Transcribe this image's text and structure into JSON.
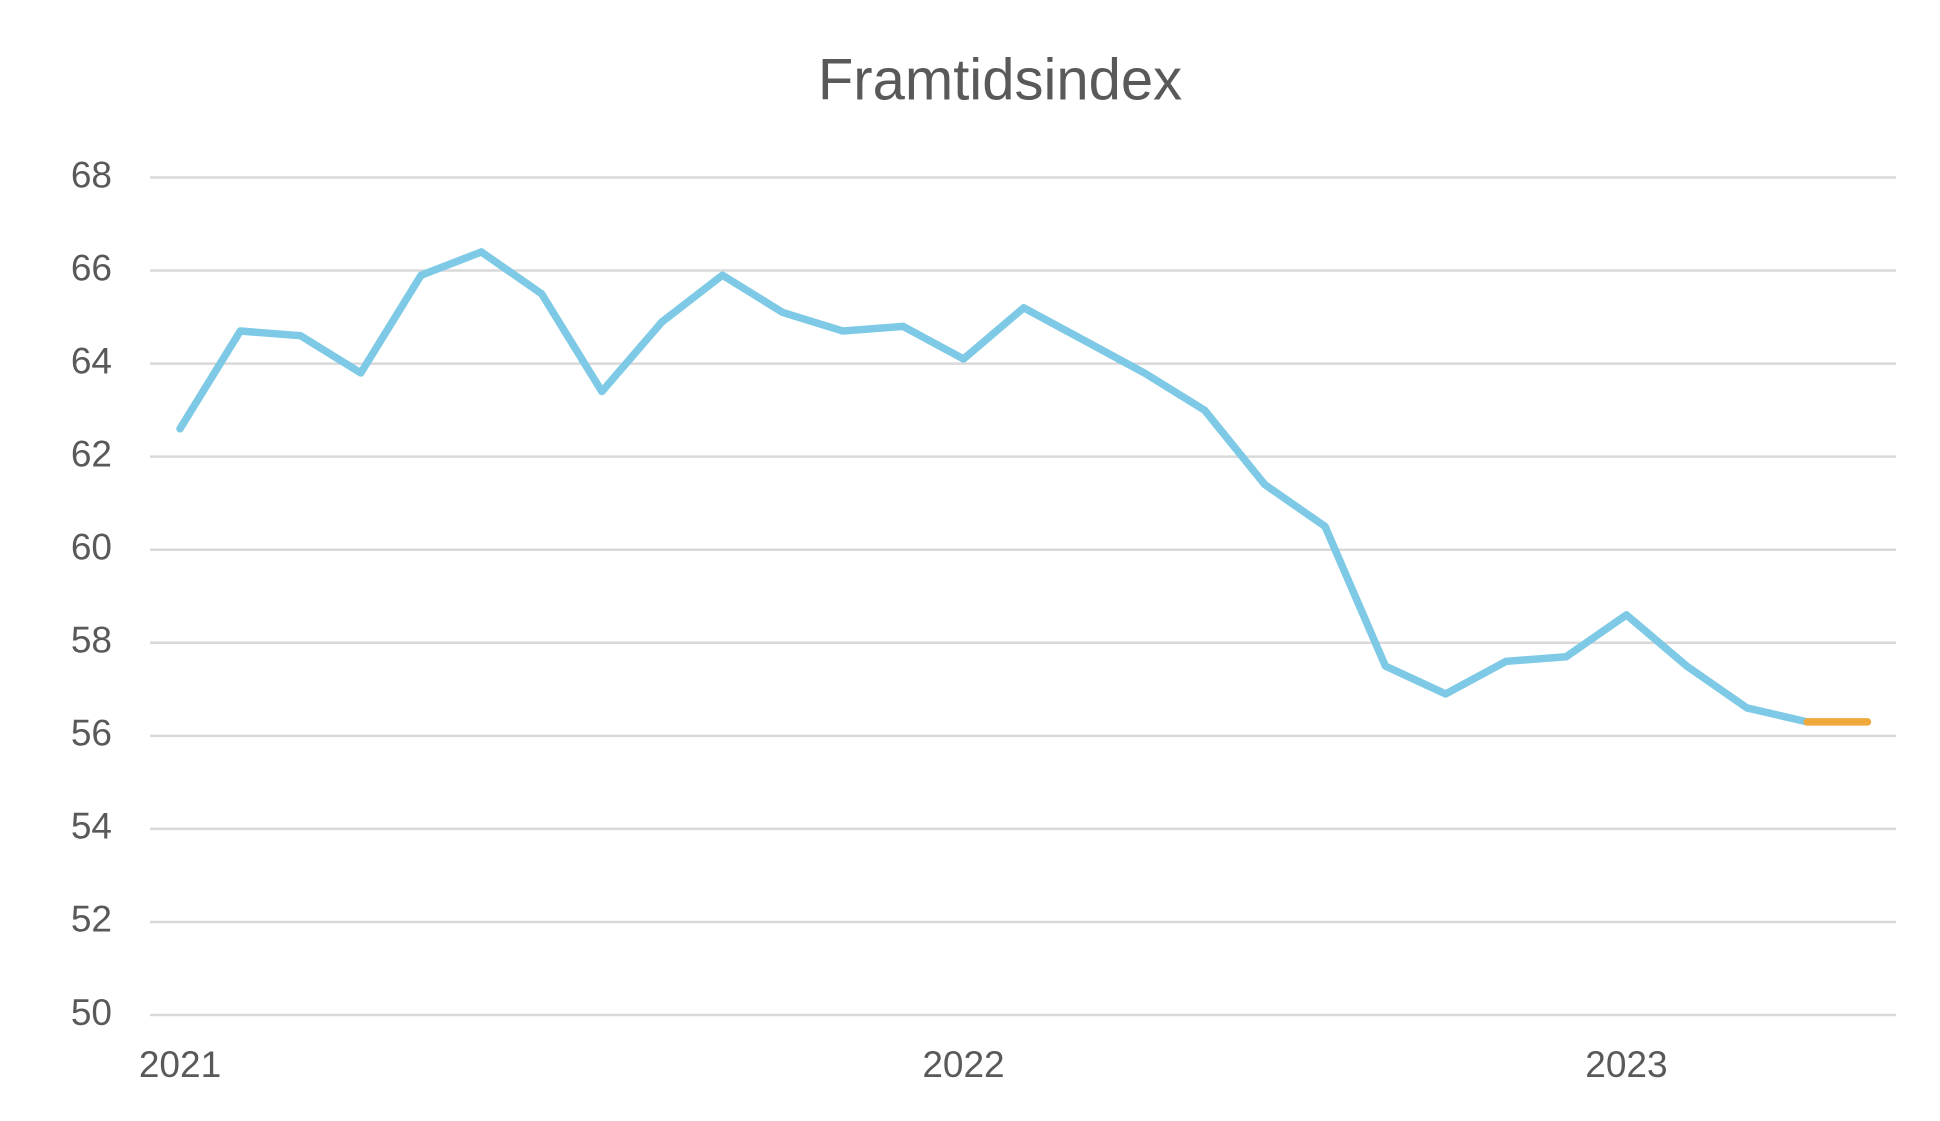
{
  "chart_data": {
    "type": "line",
    "title": "Framtidsindex",
    "categories": [
      "2021",
      null,
      null,
      null,
      null,
      null,
      null,
      null,
      null,
      null,
      null,
      null,
      null,
      "2022",
      null,
      null,
      null,
      null,
      null,
      null,
      null,
      null,
      null,
      null,
      "2023",
      null,
      null,
      null,
      null
    ],
    "series": [
      {
        "color": "#7ecae6",
        "values": [
          62.6,
          64.7,
          64.6,
          63.8,
          65.9,
          66.4,
          65.5,
          63.4,
          64.9,
          65.9,
          65.1,
          64.7,
          64.8,
          64.1,
          65.2,
          64.5,
          63.8,
          63.0,
          61.4,
          60.5,
          57.5,
          56.9,
          57.6,
          57.7,
          58.6,
          57.5,
          56.6,
          56.3,
          null
        ]
      },
      {
        "color": "#f0a93b",
        "values": [
          null,
          null,
          null,
          null,
          null,
          null,
          null,
          null,
          null,
          null,
          null,
          null,
          null,
          null,
          null,
          null,
          null,
          null,
          null,
          null,
          null,
          null,
          null,
          null,
          null,
          null,
          null,
          56.3,
          56.3
        ]
      }
    ],
    "ylim": [
      50,
      68
    ],
    "yticks": [
      50,
      52,
      54,
      56,
      58,
      60,
      62,
      64,
      66,
      68
    ],
    "grid": true
  }
}
